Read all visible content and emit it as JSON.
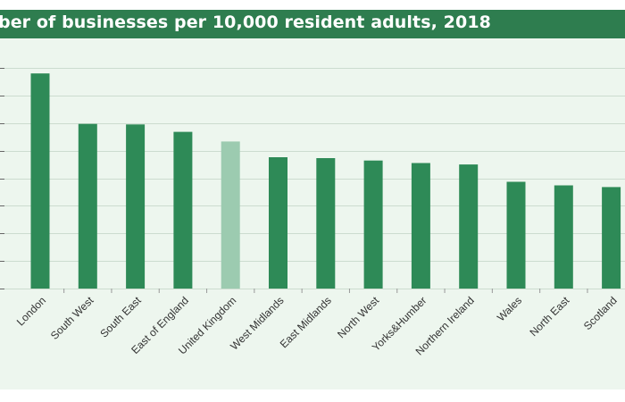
{
  "header": {
    "title": "ber of businesses per 10,000 resident adults, 2018"
  },
  "colors": {
    "header_bg": "#2e7d4f",
    "panel_bg": "#edf6ee",
    "bar": "#2e8a57",
    "bar_highlight": "#9ccbb0",
    "grid": "#ccdccf",
    "axis_text": "#333333"
  },
  "chart_data": {
    "type": "bar",
    "title": "ber of businesses per 10,000 resident adults, 2018",
    "xlabel": "",
    "ylabel": "",
    "categories": [
      "London",
      "South West",
      "South East",
      "East of England",
      "United Kingdom",
      "West Midlands",
      "East Midlands",
      "North West",
      "Yorks&Humber",
      "Northern Ireland",
      "Wales",
      "North East",
      "Scotland"
    ],
    "values": [
      7.8,
      5.97,
      5.95,
      5.68,
      5.33,
      4.76,
      4.73,
      4.64,
      4.55,
      4.5,
      3.87,
      3.74,
      3.68
    ],
    "highlight": [
      "United Kingdom"
    ],
    "ylim": [
      0,
      8
    ],
    "grid": true,
    "legend": "none"
  }
}
